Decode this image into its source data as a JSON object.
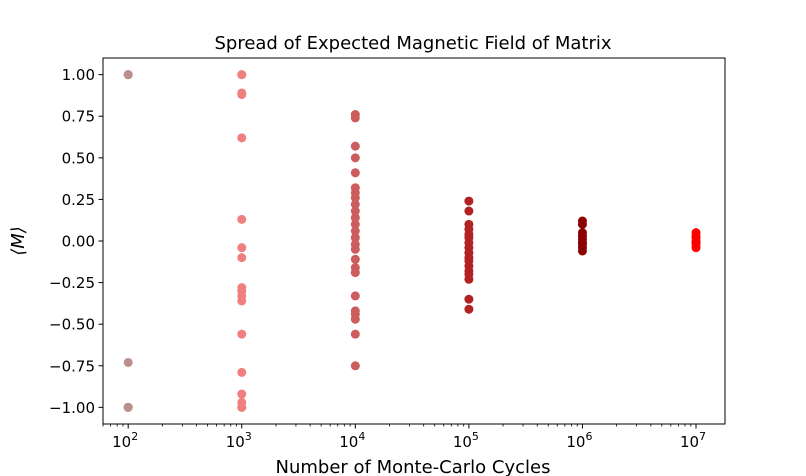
{
  "chart_data": {
    "type": "scatter",
    "title": "Spread of Expected Magnetic Field of Matrix",
    "xlabel": "Number of Monte-Carlo Cycles",
    "ylabel": "⟨M⟩",
    "xscale": "log",
    "xlim": [
      60,
      18000000
    ],
    "ylim": [
      -1.1,
      1.1
    ],
    "x_ticks": [
      {
        "value": 100,
        "base": "10",
        "exp": "2"
      },
      {
        "value": 1000,
        "base": "10",
        "exp": "3"
      },
      {
        "value": 10000,
        "base": "10",
        "exp": "4"
      },
      {
        "value": 100000,
        "base": "10",
        "exp": "5"
      },
      {
        "value": 1000000,
        "base": "10",
        "exp": "6"
      },
      {
        "value": 10000000,
        "base": "10",
        "exp": "7"
      }
    ],
    "y_ticks": [
      {
        "value": 1.0,
        "label": "1.00"
      },
      {
        "value": 0.75,
        "label": "0.75"
      },
      {
        "value": 0.5,
        "label": "0.50"
      },
      {
        "value": 0.25,
        "label": "0.25"
      },
      {
        "value": 0.0,
        "label": "0.00"
      },
      {
        "value": -0.25,
        "label": "−0.25"
      },
      {
        "value": -0.5,
        "label": "−0.50"
      },
      {
        "value": -0.75,
        "label": "−0.75"
      },
      {
        "value": -1.0,
        "label": "−1.00"
      }
    ],
    "grid": false,
    "legend": "none",
    "series": [
      {
        "x": 100,
        "color": "#bc8f8f",
        "values": [
          1.0,
          1.0,
          1.0,
          -0.73,
          -1.0,
          -1.0,
          -1.0,
          -1.0
        ]
      },
      {
        "x": 1000,
        "color": "#f08080",
        "values": [
          1.0,
          1.0,
          0.89,
          0.88,
          0.62,
          0.13,
          -0.04,
          -0.1,
          -0.28,
          -0.3,
          -0.33,
          -0.36,
          -0.56,
          -0.79,
          -0.92,
          -0.97,
          -1.0,
          -1.0
        ]
      },
      {
        "x": 10000,
        "color": "#cd5c5c",
        "values": [
          0.76,
          0.74,
          0.57,
          0.5,
          0.41,
          0.32,
          0.29,
          0.26,
          0.22,
          0.18,
          0.14,
          0.1,
          0.06,
          0.02,
          -0.02,
          -0.05,
          -0.11,
          -0.16,
          -0.19,
          -0.33,
          -0.42,
          -0.44,
          -0.47,
          -0.56,
          -0.75
        ]
      },
      {
        "x": 100000,
        "color": "#b22222",
        "values": [
          0.24,
          0.18,
          0.1,
          0.07,
          0.04,
          0.02,
          -0.01,
          -0.04,
          -0.07,
          -0.1,
          -0.12,
          -0.15,
          -0.18,
          -0.2,
          -0.23,
          -0.35,
          -0.41
        ]
      },
      {
        "x": 1000000,
        "color": "#8b0000",
        "values": [
          0.12,
          0.1,
          0.05,
          0.03,
          0.01,
          -0.01,
          -0.02,
          -0.04,
          -0.06
        ]
      },
      {
        "x": 10000000,
        "color": "#ff0000",
        "values": [
          0.05,
          0.03,
          0.02,
          0.0,
          -0.01,
          -0.02,
          -0.04
        ]
      }
    ]
  }
}
